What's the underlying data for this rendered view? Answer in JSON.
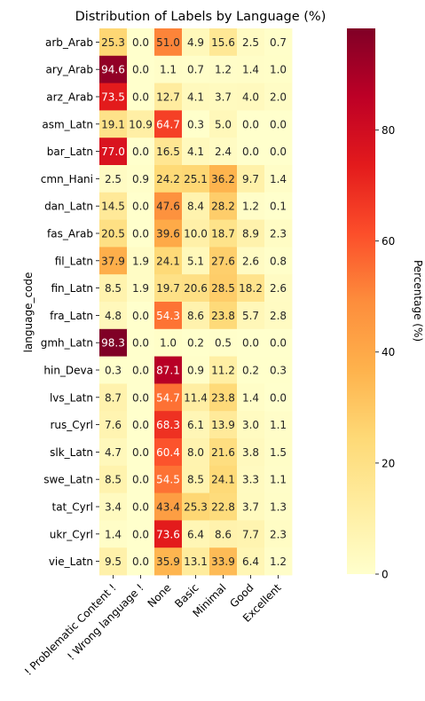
{
  "chart_data": {
    "type": "heatmap",
    "title": "Distribution of Labels by Language (%)",
    "ylabel": "language_code",
    "xlabel": "",
    "colorbar_label": "Percentage (%)",
    "colorbar_ticks": [
      0,
      20,
      40,
      60,
      80
    ],
    "colorbar_range": [
      0,
      98.3
    ],
    "colormap": "YlOrRd",
    "columns": [
      "! Problematic Content !",
      "! Wrong language !",
      "None",
      "Basic",
      "Minimal",
      "Good",
      "Excellent"
    ],
    "rows": [
      "arb_Arab",
      "ary_Arab",
      "arz_Arab",
      "asm_Latn",
      "bar_Latn",
      "cmn_Hani",
      "dan_Latn",
      "fas_Arab",
      "fil_Latn",
      "fin_Latn",
      "fra_Latn",
      "gmh_Latn",
      "hin_Deva",
      "lvs_Latn",
      "rus_Cyrl",
      "slk_Latn",
      "swe_Latn",
      "tat_Cyrl",
      "ukr_Cyrl",
      "vie_Latn"
    ],
    "values": [
      [
        25.3,
        0.0,
        51.0,
        4.9,
        15.6,
        2.5,
        0.7
      ],
      [
        94.6,
        0.0,
        1.1,
        0.7,
        1.2,
        1.4,
        1.0
      ],
      [
        73.5,
        0.0,
        12.7,
        4.1,
        3.7,
        4.0,
        2.0
      ],
      [
        19.1,
        10.9,
        64.7,
        0.3,
        5.0,
        0.0,
        0.0
      ],
      [
        77.0,
        0.0,
        16.5,
        4.1,
        2.4,
        0.0,
        0.0
      ],
      [
        2.5,
        0.9,
        24.2,
        25.1,
        36.2,
        9.7,
        1.4
      ],
      [
        14.5,
        0.0,
        47.6,
        8.4,
        28.2,
        1.2,
        0.1
      ],
      [
        20.5,
        0.0,
        39.6,
        10.0,
        18.7,
        8.9,
        2.3
      ],
      [
        37.9,
        1.9,
        24.1,
        5.1,
        27.6,
        2.6,
        0.8
      ],
      [
        8.5,
        1.9,
        19.7,
        20.6,
        28.5,
        18.2,
        2.6
      ],
      [
        4.8,
        0.0,
        54.3,
        8.6,
        23.8,
        5.7,
        2.8
      ],
      [
        98.3,
        0.0,
        1.0,
        0.2,
        0.5,
        0.0,
        0.0
      ],
      [
        0.3,
        0.0,
        87.1,
        0.9,
        11.2,
        0.2,
        0.3
      ],
      [
        8.7,
        0.0,
        54.7,
        11.4,
        23.8,
        1.4,
        0.0
      ],
      [
        7.6,
        0.0,
        68.3,
        6.1,
        13.9,
        3.0,
        1.1
      ],
      [
        4.7,
        0.0,
        60.4,
        8.0,
        21.6,
        3.8,
        1.5
      ],
      [
        8.5,
        0.0,
        54.5,
        8.5,
        24.1,
        3.3,
        1.1
      ],
      [
        3.4,
        0.0,
        43.4,
        25.3,
        22.8,
        3.7,
        1.3
      ],
      [
        1.4,
        0.0,
        73.6,
        6.4,
        8.6,
        7.7,
        2.3
      ],
      [
        9.5,
        0.0,
        35.9,
        13.1,
        33.9,
        6.4,
        1.2
      ]
    ]
  }
}
